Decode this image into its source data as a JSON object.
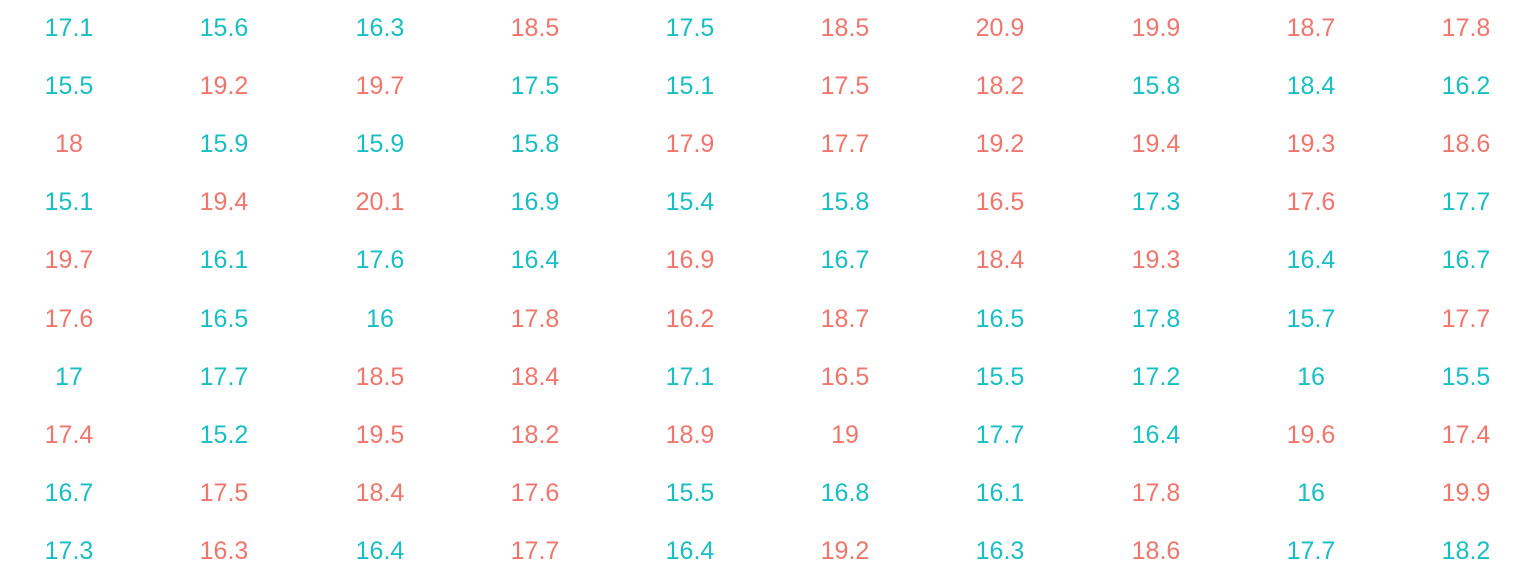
{
  "chart_data": {
    "type": "table",
    "colors": {
      "high": "#f0766d",
      "low": "#19bec3"
    },
    "rows": [
      [
        17.1,
        15.6,
        16.3,
        18.5,
        17.5,
        18.5,
        20.9,
        19.9,
        18.7,
        17.8
      ],
      [
        15.5,
        19.2,
        19.7,
        17.5,
        15.1,
        17.5,
        18.2,
        15.8,
        18.4,
        16.2
      ],
      [
        18,
        15.9,
        15.9,
        15.8,
        17.9,
        17.7,
        19.2,
        19.4,
        19.3,
        18.6
      ],
      [
        15.1,
        19.4,
        20.1,
        16.9,
        15.4,
        15.8,
        16.5,
        17.3,
        17.6,
        17.7
      ],
      [
        19.7,
        16.1,
        17.6,
        16.4,
        16.9,
        16.7,
        18.4,
        19.3,
        16.4,
        16.7
      ],
      [
        17.6,
        16.5,
        16,
        17.8,
        16.2,
        18.7,
        16.5,
        17.8,
        15.7,
        17.7
      ],
      [
        17,
        17.7,
        18.5,
        18.4,
        17.1,
        16.5,
        15.5,
        17.2,
        16,
        15.5
      ],
      [
        17.4,
        15.2,
        19.5,
        18.2,
        18.9,
        19,
        17.7,
        16.4,
        19.6,
        17.4
      ],
      [
        16.7,
        17.5,
        18.4,
        17.6,
        15.5,
        16.8,
        16.1,
        17.8,
        16,
        19.9
      ],
      [
        17.3,
        16.3,
        16.4,
        17.7,
        16.4,
        19.2,
        16.3,
        18.6,
        17.7,
        18.2
      ]
    ],
    "cell_colors": [
      [
        "low",
        "low",
        "low",
        "high",
        "low",
        "high",
        "high",
        "high",
        "high",
        "high"
      ],
      [
        "low",
        "high",
        "high",
        "low",
        "low",
        "high",
        "high",
        "low",
        "low",
        "low"
      ],
      [
        "high",
        "low",
        "low",
        "low",
        "high",
        "high",
        "high",
        "high",
        "high",
        "high"
      ],
      [
        "low",
        "high",
        "high",
        "low",
        "low",
        "low",
        "high",
        "low",
        "high",
        "low"
      ],
      [
        "high",
        "low",
        "low",
        "low",
        "high",
        "low",
        "high",
        "high",
        "low",
        "low"
      ],
      [
        "high",
        "low",
        "low",
        "high",
        "high",
        "high",
        "low",
        "low",
        "low",
        "high"
      ],
      [
        "low",
        "low",
        "high",
        "high",
        "low",
        "high",
        "low",
        "low",
        "low",
        "low"
      ],
      [
        "high",
        "low",
        "high",
        "high",
        "high",
        "high",
        "low",
        "low",
        "high",
        "high"
      ],
      [
        "low",
        "high",
        "high",
        "high",
        "low",
        "low",
        "low",
        "high",
        "low",
        "high"
      ],
      [
        "low",
        "high",
        "low",
        "high",
        "low",
        "high",
        "low",
        "high",
        "low",
        "low"
      ]
    ]
  }
}
